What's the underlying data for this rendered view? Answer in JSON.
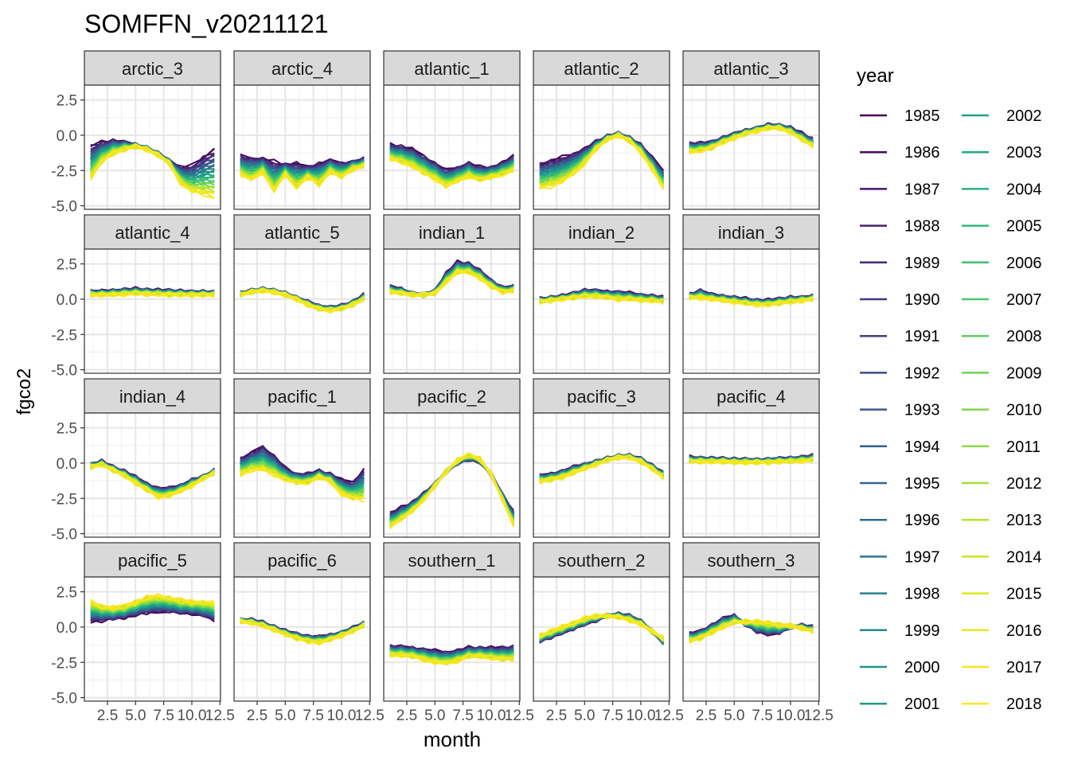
{
  "chart_data": {
    "type": "line",
    "title": "SOMFFN_v20211121",
    "xlabel": "month",
    "ylabel": "fgco2",
    "xlim": [
      1,
      12
    ],
    "ylim": [
      -5.0,
      2.5
    ],
    "x_ticks": [
      "2.5",
      "5.0",
      "7.5",
      "10.0",
      "12.5"
    ],
    "x_tick_values": [
      2.5,
      5.0,
      7.5,
      10.0,
      12.5
    ],
    "y_ticks": [
      "-5.0",
      "-2.5",
      "0.0",
      "2.5"
    ],
    "y_tick_values": [
      -5.0,
      -2.5,
      0.0,
      2.5
    ],
    "grid": true,
    "legend_title": "year",
    "legend_position": "right",
    "years": [
      "1985",
      "1986",
      "1987",
      "1988",
      "1989",
      "1990",
      "1991",
      "1992",
      "1993",
      "1994",
      "1995",
      "1996",
      "1997",
      "1998",
      "1999",
      "2000",
      "2001",
      "2002",
      "2003",
      "2004",
      "2005",
      "2006",
      "2007",
      "2008",
      "2009",
      "2010",
      "2011",
      "2012",
      "2013",
      "2014",
      "2015",
      "2016",
      "2017",
      "2018"
    ],
    "year_colors": [
      "#440154",
      "#460B5E",
      "#481668",
      "#482071",
      "#472A7A",
      "#453581",
      "#423E85",
      "#3E4A89",
      "#3A538B",
      "#355E8D",
      "#32658E",
      "#2E6F8E",
      "#2B788E",
      "#28818E",
      "#25898E",
      "#22928C",
      "#1F998A",
      "#1FA387",
      "#22AA84",
      "#28B27F",
      "#31BA79",
      "#3EC270",
      "#4BC76A",
      "#5BCD60",
      "#6CD356",
      "#7DD84C",
      "#91DC41",
      "#A3E036",
      "#B7E42B",
      "#C9E620",
      "#DCE81B",
      "#EAE71B",
      "#F6E720",
      "#FDE725"
    ],
    "panels": [
      {
        "name": "arctic_3",
        "months": [
          1,
          2,
          3,
          4,
          5,
          6,
          7,
          8,
          9,
          10,
          11,
          12
        ],
        "first": [
          -0.8,
          -0.5,
          -0.4,
          -0.5,
          -0.7,
          -0.9,
          -1.3,
          -1.8,
          -2.3,
          -2.2,
          -1.5,
          -1.0
        ],
        "last": [
          -3.1,
          -1.9,
          -1.3,
          -1.0,
          -0.8,
          -1.0,
          -1.4,
          -2.0,
          -3.4,
          -4.0,
          -4.2,
          -4.4
        ]
      },
      {
        "name": "arctic_4",
        "months": [
          1,
          2,
          3,
          4,
          5,
          6,
          7,
          8,
          9,
          10,
          11,
          12
        ],
        "first": [
          -1.5,
          -1.6,
          -1.7,
          -1.9,
          -2.1,
          -2.0,
          -2.3,
          -2.0,
          -1.8,
          -2.0,
          -1.9,
          -1.7
        ],
        "last": [
          -2.8,
          -3.2,
          -2.6,
          -4.0,
          -2.8,
          -3.7,
          -3.0,
          -3.5,
          -2.6,
          -3.0,
          -2.4,
          -2.2
        ]
      },
      {
        "name": "atlantic_1",
        "months": [
          1,
          2,
          3,
          4,
          5,
          6,
          7,
          8,
          9,
          10,
          11,
          12
        ],
        "first": [
          -0.7,
          -0.8,
          -1.0,
          -1.5,
          -2.0,
          -2.5,
          -2.3,
          -2.0,
          -2.3,
          -2.3,
          -2.0,
          -1.5
        ],
        "last": [
          -1.7,
          -1.9,
          -2.2,
          -2.7,
          -3.1,
          -3.6,
          -3.3,
          -2.9,
          -3.2,
          -3.0,
          -2.8,
          -2.5
        ]
      },
      {
        "name": "atlantic_2",
        "months": [
          1,
          2,
          3,
          4,
          5,
          6,
          7,
          8,
          9,
          10,
          11,
          12
        ],
        "first": [
          -2.0,
          -1.8,
          -1.6,
          -1.3,
          -1.0,
          -0.5,
          -0.1,
          0.1,
          -0.2,
          -0.7,
          -1.6,
          -2.5
        ],
        "last": [
          -3.8,
          -3.6,
          -3.3,
          -2.8,
          -2.0,
          -1.0,
          -0.3,
          0.0,
          -0.4,
          -1.2,
          -2.4,
          -3.8
        ]
      },
      {
        "name": "atlantic_3",
        "months": [
          1,
          2,
          3,
          4,
          5,
          6,
          7,
          8,
          9,
          10,
          11,
          12
        ],
        "first": [
          -0.6,
          -0.6,
          -0.5,
          -0.2,
          0.1,
          0.3,
          0.5,
          0.7,
          0.7,
          0.5,
          0.1,
          -0.3
        ],
        "last": [
          -1.2,
          -1.1,
          -0.9,
          -0.5,
          -0.2,
          0.1,
          0.3,
          0.5,
          0.5,
          0.2,
          -0.3,
          -0.8
        ]
      },
      {
        "name": "atlantic_4",
        "months": [
          1,
          2,
          3,
          4,
          5,
          6,
          7,
          8,
          9,
          10,
          11,
          12
        ],
        "first": [
          0.55,
          0.55,
          0.6,
          0.65,
          0.7,
          0.65,
          0.6,
          0.6,
          0.55,
          0.5,
          0.5,
          0.5
        ],
        "last": [
          0.3,
          0.3,
          0.3,
          0.35,
          0.4,
          0.35,
          0.35,
          0.3,
          0.3,
          0.3,
          0.3,
          0.3
        ]
      },
      {
        "name": "atlantic_5",
        "months": [
          1,
          2,
          3,
          4,
          5,
          6,
          7,
          8,
          9,
          10,
          11,
          12
        ],
        "first": [
          0.4,
          0.6,
          0.7,
          0.6,
          0.4,
          0.1,
          -0.2,
          -0.5,
          -0.6,
          -0.5,
          -0.2,
          0.3
        ],
        "last": [
          0.3,
          0.5,
          0.6,
          0.5,
          0.3,
          0.0,
          -0.4,
          -0.7,
          -0.8,
          -0.7,
          -0.4,
          0.0
        ]
      },
      {
        "name": "indian_1",
        "months": [
          1,
          2,
          3,
          4,
          5,
          6,
          7,
          8,
          9,
          10,
          11,
          12
        ],
        "first": [
          0.9,
          0.7,
          0.4,
          0.3,
          0.6,
          1.8,
          2.6,
          2.5,
          2.0,
          1.3,
          0.8,
          0.9
        ],
        "last": [
          0.5,
          0.4,
          0.3,
          0.3,
          0.4,
          1.2,
          1.9,
          1.9,
          1.5,
          0.9,
          0.5,
          0.6
        ]
      },
      {
        "name": "indian_2",
        "months": [
          1,
          2,
          3,
          4,
          5,
          6,
          7,
          8,
          9,
          10,
          11,
          12
        ],
        "first": [
          0.0,
          0.1,
          0.2,
          0.4,
          0.6,
          0.6,
          0.5,
          0.5,
          0.4,
          0.3,
          0.2,
          0.1
        ],
        "last": [
          -0.2,
          -0.1,
          0.0,
          0.1,
          0.2,
          0.2,
          0.1,
          0.0,
          0.0,
          -0.1,
          -0.1,
          -0.2
        ]
      },
      {
        "name": "indian_3",
        "months": [
          1,
          2,
          3,
          4,
          5,
          6,
          7,
          8,
          9,
          10,
          11,
          12
        ],
        "first": [
          0.3,
          0.6,
          0.3,
          0.2,
          0.1,
          0.0,
          -0.1,
          -0.1,
          0.0,
          0.1,
          0.1,
          0.2
        ],
        "last": [
          0.1,
          0.1,
          0.0,
          -0.1,
          -0.2,
          -0.3,
          -0.4,
          -0.4,
          -0.3,
          -0.2,
          -0.1,
          0.0
        ]
      },
      {
        "name": "indian_4",
        "months": [
          1,
          2,
          3,
          4,
          5,
          6,
          7,
          8,
          9,
          10,
          11,
          12
        ],
        "first": [
          -0.1,
          0.1,
          -0.3,
          -0.6,
          -1.0,
          -1.5,
          -1.8,
          -1.8,
          -1.6,
          -1.2,
          -1.0,
          -0.5
        ],
        "last": [
          -0.3,
          -0.1,
          -0.5,
          -0.9,
          -1.4,
          -1.9,
          -2.4,
          -2.3,
          -2.0,
          -1.6,
          -1.1,
          -0.7
        ]
      },
      {
        "name": "pacific_1",
        "months": [
          1,
          2,
          3,
          4,
          5,
          6,
          7,
          8,
          9,
          10,
          11,
          12
        ],
        "first": [
          0.3,
          0.7,
          1.2,
          0.5,
          -0.4,
          -0.8,
          -0.8,
          -0.6,
          -0.8,
          -1.2,
          -1.4,
          -0.4
        ],
        "last": [
          -0.8,
          -0.5,
          -0.5,
          -0.8,
          -1.2,
          -1.4,
          -1.4,
          -1.0,
          -1.3,
          -2.2,
          -2.5,
          -2.6
        ]
      },
      {
        "name": "pacific_2",
        "months": [
          1,
          2,
          3,
          4,
          5,
          6,
          7,
          8,
          9,
          10,
          11,
          12
        ],
        "first": [
          -3.6,
          -3.2,
          -2.8,
          -2.2,
          -1.5,
          -0.6,
          0.0,
          0.3,
          0.1,
          -0.8,
          -2.2,
          -3.5
        ],
        "last": [
          -4.5,
          -4.0,
          -3.4,
          -2.6,
          -1.6,
          -0.6,
          0.2,
          0.6,
          0.3,
          -0.8,
          -2.6,
          -4.4
        ]
      },
      {
        "name": "pacific_3",
        "months": [
          1,
          2,
          3,
          4,
          5,
          6,
          7,
          8,
          9,
          10,
          11,
          12
        ],
        "first": [
          -0.9,
          -0.8,
          -0.6,
          -0.3,
          -0.1,
          0.1,
          0.3,
          0.5,
          0.5,
          0.3,
          -0.2,
          -0.7
        ],
        "last": [
          -1.3,
          -1.2,
          -1.0,
          -0.7,
          -0.4,
          -0.1,
          0.2,
          0.4,
          0.4,
          0.1,
          -0.4,
          -1.0
        ]
      },
      {
        "name": "pacific_4",
        "months": [
          1,
          2,
          3,
          4,
          5,
          6,
          7,
          8,
          9,
          10,
          11,
          12
        ],
        "first": [
          0.4,
          0.35,
          0.3,
          0.3,
          0.25,
          0.25,
          0.2,
          0.25,
          0.3,
          0.35,
          0.4,
          0.5
        ],
        "last": [
          0.1,
          0.1,
          0.1,
          0.1,
          0.05,
          0.05,
          0.05,
          0.05,
          0.1,
          0.1,
          0.15,
          0.2
        ]
      },
      {
        "name": "pacific_5",
        "months": [
          1,
          2,
          3,
          4,
          5,
          6,
          7,
          8,
          9,
          10,
          11,
          12
        ],
        "first": [
          0.4,
          0.5,
          0.6,
          0.7,
          0.9,
          1.0,
          1.1,
          1.1,
          1.0,
          1.0,
          0.8,
          0.5
        ],
        "last": [
          1.8,
          1.5,
          1.4,
          1.5,
          1.8,
          2.1,
          2.2,
          2.1,
          1.9,
          1.8,
          1.8,
          1.7
        ]
      },
      {
        "name": "pacific_6",
        "months": [
          1,
          2,
          3,
          4,
          5,
          6,
          7,
          8,
          9,
          10,
          11,
          12
        ],
        "first": [
          0.5,
          0.5,
          0.3,
          0.0,
          -0.3,
          -0.5,
          -0.7,
          -0.7,
          -0.6,
          -0.4,
          -0.1,
          0.3
        ],
        "last": [
          0.4,
          0.3,
          0.1,
          -0.2,
          -0.5,
          -0.8,
          -1.0,
          -1.1,
          -0.9,
          -0.6,
          -0.3,
          0.1
        ]
      },
      {
        "name": "southern_1",
        "months": [
          1,
          2,
          3,
          4,
          5,
          6,
          7,
          8,
          9,
          10,
          11,
          12
        ],
        "first": [
          -1.4,
          -1.4,
          -1.5,
          -1.6,
          -1.7,
          -1.8,
          -1.7,
          -1.5,
          -1.5,
          -1.5,
          -1.5,
          -1.4
        ],
        "last": [
          -2.0,
          -2.0,
          -2.1,
          -2.3,
          -2.5,
          -2.6,
          -2.4,
          -2.1,
          -2.1,
          -2.2,
          -2.3,
          -2.3
        ]
      },
      {
        "name": "southern_2",
        "months": [
          1,
          2,
          3,
          4,
          5,
          6,
          7,
          8,
          9,
          10,
          11,
          12
        ],
        "first": [
          -1.0,
          -0.7,
          -0.4,
          -0.1,
          0.2,
          0.5,
          0.8,
          0.9,
          0.8,
          0.4,
          -0.3,
          -1.1
        ],
        "last": [
          -0.6,
          -0.3,
          0.0,
          0.3,
          0.6,
          0.8,
          0.8,
          0.7,
          0.5,
          0.2,
          -0.3,
          -0.8
        ]
      },
      {
        "name": "southern_3",
        "months": [
          1,
          2,
          3,
          4,
          5,
          6,
          7,
          8,
          9,
          10,
          11,
          12
        ],
        "first": [
          -0.5,
          -0.3,
          0.1,
          0.6,
          0.8,
          0.2,
          -0.3,
          -0.5,
          -0.4,
          0.0,
          0.1,
          0.0
        ],
        "last": [
          -1.0,
          -0.8,
          -0.4,
          0.0,
          0.3,
          0.4,
          0.4,
          0.3,
          0.2,
          0.1,
          -0.1,
          -0.3
        ]
      }
    ]
  }
}
